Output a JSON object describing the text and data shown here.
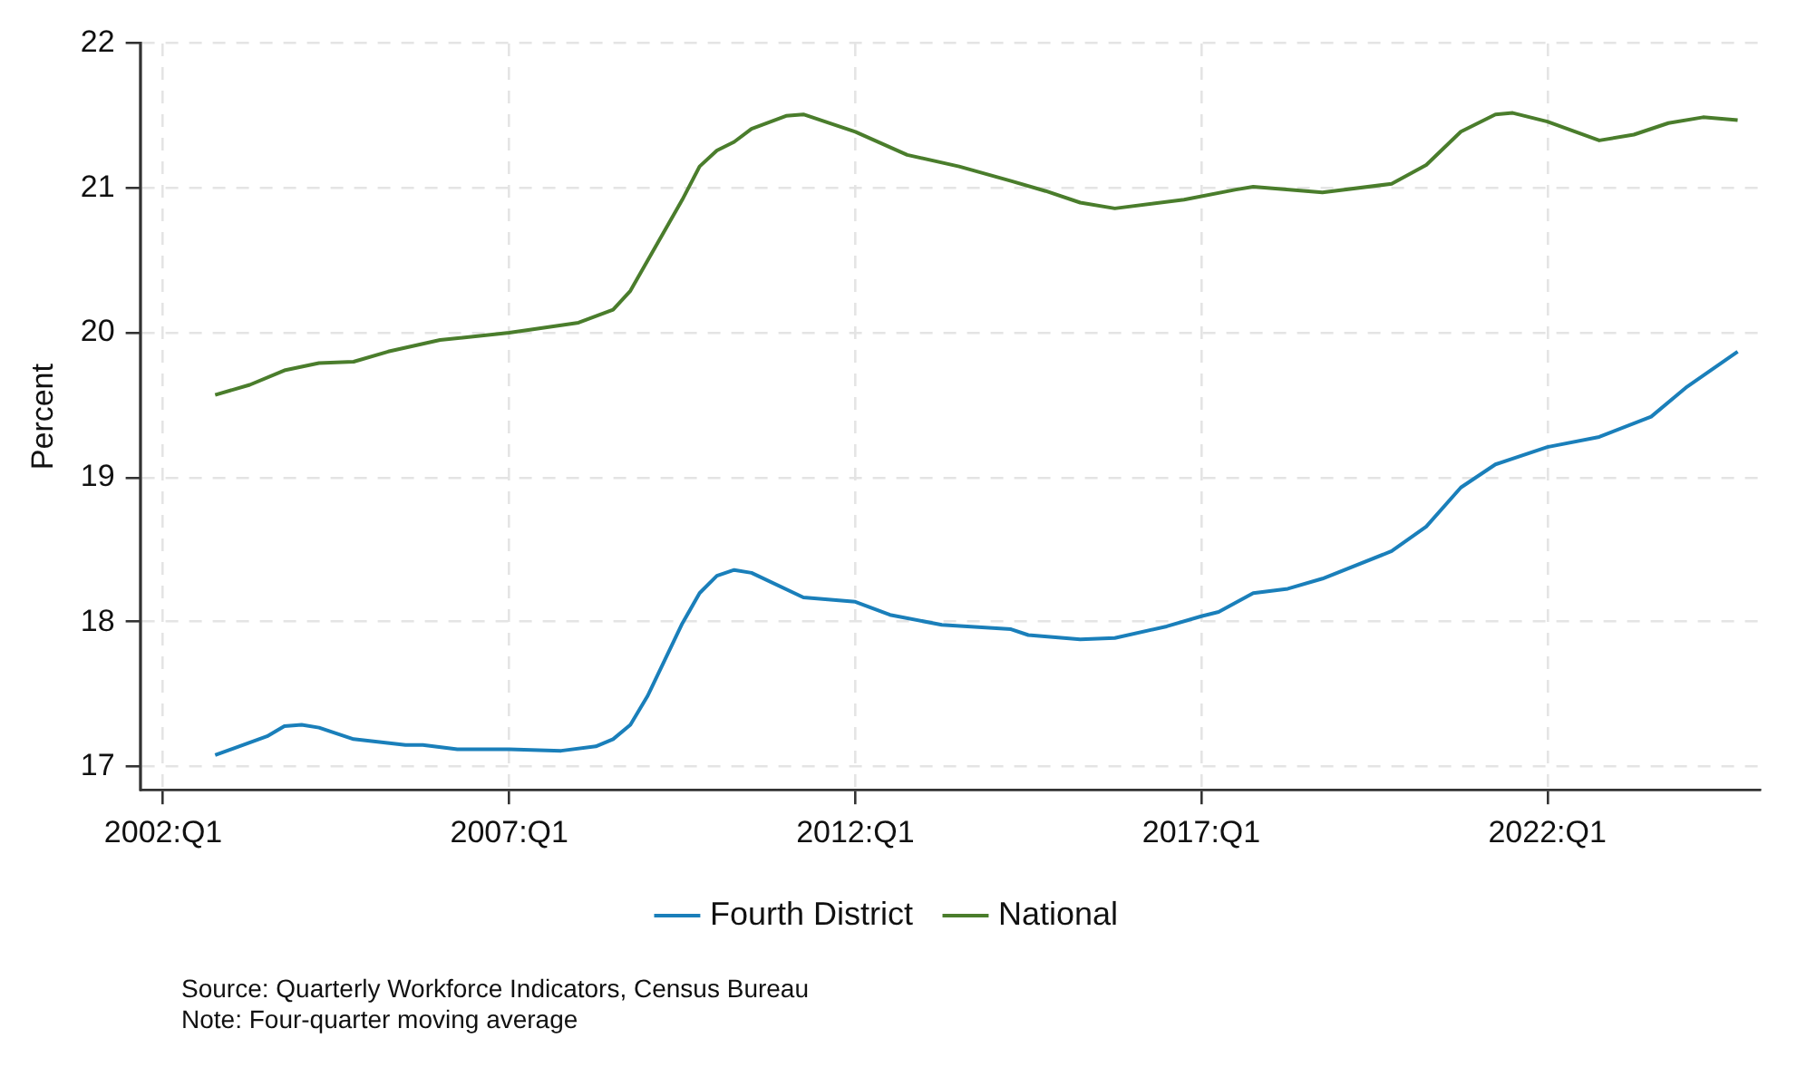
{
  "chart_data": {
    "type": "line",
    "ylabel": "Percent",
    "xlim": [
      "2001-09",
      "2025-02"
    ],
    "ylim": [
      16.84,
      22.0
    ],
    "xticks": [
      {
        "value": "2002-01",
        "label": "2002:Q1"
      },
      {
        "value": "2007-01",
        "label": "2007:Q1"
      },
      {
        "value": "2012-01",
        "label": "2012:Q1"
      },
      {
        "value": "2017-01",
        "label": "2017:Q1"
      },
      {
        "value": "2022-01",
        "label": "2022:Q1"
      }
    ],
    "yticks": [
      17,
      18,
      19,
      20,
      21,
      22
    ],
    "grid": true,
    "legend": "bottom",
    "marker": "none",
    "line_style": "solid",
    "series": [
      {
        "name": "Fourth District",
        "color": "#1a7fba",
        "x": [
          "2002-10",
          "2003-07",
          "2003-10",
          "2004-01",
          "2004-04",
          "2004-10",
          "2005-07",
          "2005-10",
          "2006-04",
          "2007-01",
          "2007-10",
          "2008-04",
          "2008-07",
          "2008-10",
          "2009-01",
          "2009-07",
          "2009-10",
          "2010-01",
          "2010-04",
          "2010-07",
          "2011-04",
          "2012-01",
          "2012-07",
          "2013-04",
          "2014-04",
          "2014-07",
          "2015-04",
          "2015-10",
          "2016-07",
          "2017-01",
          "2017-04",
          "2017-10",
          "2018-04",
          "2018-10",
          "2019-10",
          "2020-04",
          "2020-10",
          "2021-04",
          "2022-01",
          "2022-10",
          "2023-07",
          "2024-01",
          "2024-10"
        ],
        "values": [
          17.08,
          17.21,
          17.28,
          17.29,
          17.27,
          17.19,
          17.15,
          17.15,
          17.12,
          17.12,
          17.11,
          17.14,
          17.19,
          17.29,
          17.49,
          17.99,
          18.2,
          18.32,
          18.36,
          18.34,
          18.17,
          18.14,
          18.05,
          17.98,
          17.95,
          17.91,
          17.88,
          17.89,
          17.97,
          18.04,
          18.07,
          18.2,
          18.23,
          18.3,
          18.49,
          18.66,
          18.93,
          19.09,
          19.21,
          19.28,
          19.42,
          19.62,
          19.87
        ]
      },
      {
        "name": "National",
        "color": "#4a7d2c",
        "x": [
          "2002-10",
          "2003-04",
          "2003-10",
          "2004-04",
          "2004-10",
          "2005-04",
          "2006-01",
          "2007-01",
          "2008-01",
          "2008-07",
          "2008-10",
          "2009-01",
          "2009-07",
          "2009-10",
          "2010-01",
          "2010-04",
          "2010-07",
          "2011-01",
          "2011-04",
          "2012-01",
          "2012-10",
          "2013-07",
          "2014-04",
          "2014-10",
          "2015-04",
          "2015-10",
          "2016-10",
          "2017-07",
          "2017-10",
          "2018-10",
          "2019-10",
          "2020-04",
          "2020-10",
          "2021-04",
          "2021-07",
          "2022-01",
          "2022-10",
          "2023-04",
          "2023-10",
          "2024-04",
          "2024-10"
        ],
        "values": [
          19.57,
          19.64,
          19.74,
          19.79,
          19.8,
          19.87,
          19.95,
          20.0,
          20.07,
          20.16,
          20.29,
          20.5,
          20.92,
          21.15,
          21.26,
          21.32,
          21.41,
          21.5,
          21.51,
          21.39,
          21.23,
          21.15,
          21.05,
          20.98,
          20.9,
          20.86,
          20.92,
          20.99,
          21.01,
          20.97,
          21.03,
          21.16,
          21.39,
          21.51,
          21.52,
          21.46,
          21.33,
          21.37,
          21.45,
          21.49,
          21.47
        ]
      }
    ],
    "annotations": [
      "Source: Quarterly Workforce Indicators, Census Bureau",
      "Note: Four-quarter moving average"
    ]
  }
}
